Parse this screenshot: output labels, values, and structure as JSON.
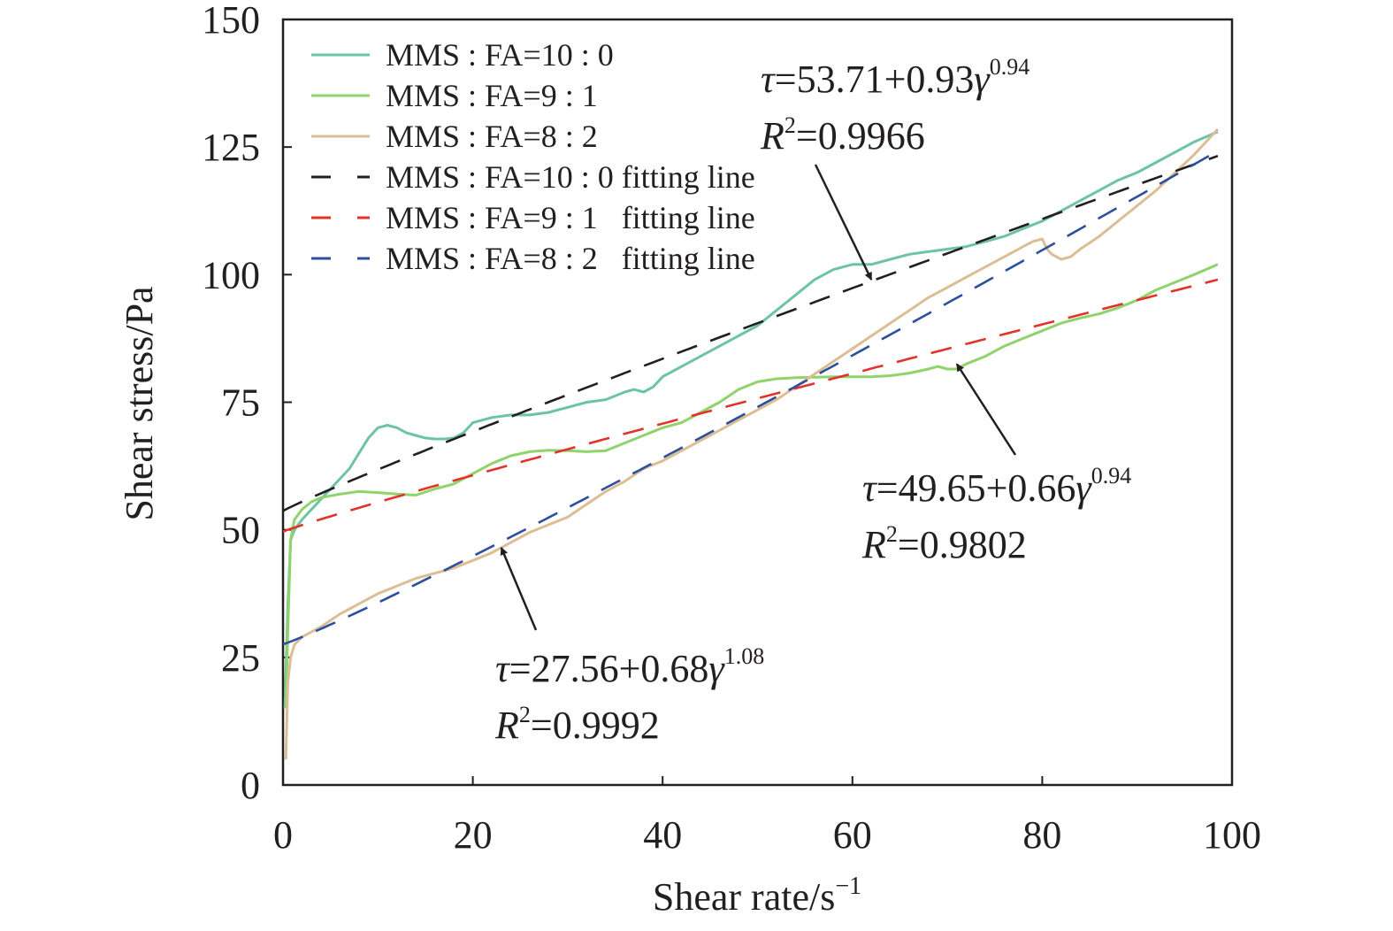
{
  "chart_data": {
    "type": "line",
    "xlabel_main": "Shear rate/s",
    "xlabel_sup": "−1",
    "ylabel": "Shear stress/Pa",
    "xlim": [
      0,
      100
    ],
    "ylim": [
      0,
      150
    ],
    "xticks": [
      0,
      20,
      40,
      60,
      80,
      100
    ],
    "yticks": [
      0,
      25,
      50,
      75,
      100,
      125,
      150
    ],
    "grid": false,
    "legend_position": "top-left",
    "series": [
      {
        "name": "MMS : FA=10 : 0",
        "kind": "measured",
        "color": "#6cc4a4",
        "dash": "solid",
        "points": [
          [
            0.2,
            15
          ],
          [
            0.5,
            35
          ],
          [
            0.8,
            48
          ],
          [
            1.2,
            50
          ],
          [
            2,
            52
          ],
          [
            3,
            54
          ],
          [
            4,
            56
          ],
          [
            5,
            58
          ],
          [
            6,
            60
          ],
          [
            7,
            62
          ],
          [
            8,
            65
          ],
          [
            9,
            68
          ],
          [
            10,
            70
          ],
          [
            11,
            70.5
          ],
          [
            12,
            70
          ],
          [
            13,
            69
          ],
          [
            14,
            68.5
          ],
          [
            15,
            68
          ],
          [
            16,
            67.8
          ],
          [
            17,
            67.8
          ],
          [
            18,
            68
          ],
          [
            19,
            69
          ],
          [
            20,
            71
          ],
          [
            22,
            72
          ],
          [
            24,
            72.5
          ],
          [
            26,
            72.5
          ],
          [
            28,
            73
          ],
          [
            30,
            74
          ],
          [
            32,
            75
          ],
          [
            34,
            75.5
          ],
          [
            36,
            77
          ],
          [
            37,
            77.5
          ],
          [
            38,
            77
          ],
          [
            39,
            78
          ],
          [
            40,
            80
          ],
          [
            42,
            82
          ],
          [
            44,
            84
          ],
          [
            46,
            86
          ],
          [
            48,
            88
          ],
          [
            50,
            90
          ],
          [
            52,
            93
          ],
          [
            54,
            96
          ],
          [
            56,
            99
          ],
          [
            58,
            101
          ],
          [
            60,
            102
          ],
          [
            62,
            102
          ],
          [
            64,
            103
          ],
          [
            66,
            104
          ],
          [
            68,
            104.5
          ],
          [
            70,
            105
          ],
          [
            72,
            105.5
          ],
          [
            74,
            106.5
          ],
          [
            76,
            107.5
          ],
          [
            78,
            109
          ],
          [
            80,
            110.5
          ],
          [
            82,
            112.5
          ],
          [
            84,
            114.5
          ],
          [
            86,
            116.5
          ],
          [
            88,
            118.5
          ],
          [
            90,
            120
          ],
          [
            92,
            122
          ],
          [
            94,
            124
          ],
          [
            96,
            126
          ],
          [
            98.5,
            128
          ]
        ]
      },
      {
        "name": "MMS : FA=9 : 1",
        "kind": "measured",
        "color": "#8fd36a",
        "dash": "solid",
        "points": [
          [
            0.3,
            15
          ],
          [
            0.5,
            30
          ],
          [
            0.8,
            48
          ],
          [
            1.2,
            52
          ],
          [
            2,
            54
          ],
          [
            3,
            55.5
          ],
          [
            4,
            56.3
          ],
          [
            6,
            57
          ],
          [
            8,
            57.5
          ],
          [
            10,
            57.3
          ],
          [
            12,
            57
          ],
          [
            14,
            56.8
          ],
          [
            16,
            58
          ],
          [
            18,
            59
          ],
          [
            20,
            61
          ],
          [
            22,
            63
          ],
          [
            24,
            64.5
          ],
          [
            26,
            65.3
          ],
          [
            28,
            65.6
          ],
          [
            30,
            65.5
          ],
          [
            32,
            65.3
          ],
          [
            34,
            65.5
          ],
          [
            36,
            67
          ],
          [
            38,
            68.5
          ],
          [
            40,
            70
          ],
          [
            42,
            71
          ],
          [
            44,
            73
          ],
          [
            46,
            75
          ],
          [
            48,
            77.5
          ],
          [
            50,
            79
          ],
          [
            52,
            79.6
          ],
          [
            54,
            79.8
          ],
          [
            56,
            79.9
          ],
          [
            58,
            80
          ],
          [
            60,
            80
          ],
          [
            62,
            80
          ],
          [
            64,
            80.2
          ],
          [
            66,
            80.7
          ],
          [
            68,
            81.5
          ],
          [
            69,
            82
          ],
          [
            70,
            81.5
          ],
          [
            71,
            81.5
          ],
          [
            72,
            82.5
          ],
          [
            74,
            84
          ],
          [
            76,
            86
          ],
          [
            78,
            87.5
          ],
          [
            80,
            89
          ],
          [
            82,
            90.5
          ],
          [
            84,
            91.5
          ],
          [
            86,
            92.3
          ],
          [
            88,
            93.5
          ],
          [
            90,
            95
          ],
          [
            92,
            97
          ],
          [
            94,
            98.5
          ],
          [
            96,
            100
          ],
          [
            98.5,
            102
          ]
        ]
      },
      {
        "name": "MMS : FA=8 : 2",
        "kind": "measured",
        "color": "#dcbe94",
        "dash": "solid",
        "points": [
          [
            0.3,
            5
          ],
          [
            0.5,
            20
          ],
          [
            0.8,
            25
          ],
          [
            1.2,
            27.5
          ],
          [
            2,
            29
          ],
          [
            4,
            31
          ],
          [
            6,
            33.5
          ],
          [
            8,
            35.5
          ],
          [
            10,
            37.5
          ],
          [
            12,
            39
          ],
          [
            14,
            40.5
          ],
          [
            16,
            41.5
          ],
          [
            18,
            42.5
          ],
          [
            20,
            44
          ],
          [
            22,
            45.5
          ],
          [
            24,
            47.5
          ],
          [
            26,
            49.5
          ],
          [
            28,
            51
          ],
          [
            30,
            52.5
          ],
          [
            32,
            55
          ],
          [
            34,
            57.5
          ],
          [
            36,
            59.5
          ],
          [
            38,
            62
          ],
          [
            40,
            63.5
          ],
          [
            42,
            65.5
          ],
          [
            44,
            67.5
          ],
          [
            46,
            69.5
          ],
          [
            48,
            71.5
          ],
          [
            50,
            73.5
          ],
          [
            52,
            75.5
          ],
          [
            54,
            78
          ],
          [
            56,
            80.5
          ],
          [
            58,
            83
          ],
          [
            60,
            85.5
          ],
          [
            62,
            88
          ],
          [
            64,
            90.5
          ],
          [
            66,
            93
          ],
          [
            68,
            95.5
          ],
          [
            70,
            97.5
          ],
          [
            72,
            99.5
          ],
          [
            74,
            101.5
          ],
          [
            76,
            103.5
          ],
          [
            78,
            105.5
          ],
          [
            79,
            106.5
          ],
          [
            80,
            107
          ],
          [
            80.5,
            105
          ],
          [
            81,
            104
          ],
          [
            82,
            103
          ],
          [
            83,
            103.5
          ],
          [
            84,
            105
          ],
          [
            86,
            107.5
          ],
          [
            88,
            110.5
          ],
          [
            90,
            113.5
          ],
          [
            92,
            116.5
          ],
          [
            94,
            120
          ],
          [
            96,
            123.5
          ],
          [
            98.5,
            128.5
          ]
        ]
      },
      {
        "name": "MMS : FA=10 : 0 fitting line",
        "kind": "fit",
        "color": "#231f20",
        "dash": "dashed",
        "model": {
          "a": 53.71,
          "b": 0.93,
          "n": 0.94
        },
        "x_range": [
          0,
          98.5
        ]
      },
      {
        "name": "MMS : FA=9 : 1   fitting line",
        "kind": "fit",
        "color": "#e2322a",
        "dash": "dashed",
        "model": {
          "a": 49.65,
          "b": 0.66,
          "n": 0.94
        },
        "x_range": [
          0,
          98.5
        ]
      },
      {
        "name": "MMS : FA=8 : 2   fitting line",
        "kind": "fit",
        "color": "#2c4f9e",
        "dash": "dashed",
        "model": {
          "a": 27.56,
          "b": 0.68,
          "n": 1.08
        },
        "x_range": [
          0,
          98.5
        ]
      }
    ],
    "annotations": [
      {
        "tau_prefix": "τ",
        "body": "=53.71+0.93",
        "gamma": "γ",
        "exponent": "0.94",
        "r_letter": "R",
        "r_sup": "2",
        "r_value": "=0.9966",
        "points_to": [
          62,
          99
        ]
      },
      {
        "tau_prefix": "τ",
        "body": "=49.65+0.66",
        "gamma": "γ",
        "exponent": "0.94",
        "r_letter": "R",
        "r_sup": "2",
        "r_value": "=0.9802",
        "points_to": [
          71,
          82.5
        ]
      },
      {
        "tau_prefix": "τ",
        "body": "=27.56+0.68",
        "gamma": "γ",
        "exponent": "1.08",
        "r_letter": "R",
        "r_sup": "2",
        "r_value": "=0.9992",
        "points_to": [
          23,
          46.5
        ]
      }
    ]
  }
}
